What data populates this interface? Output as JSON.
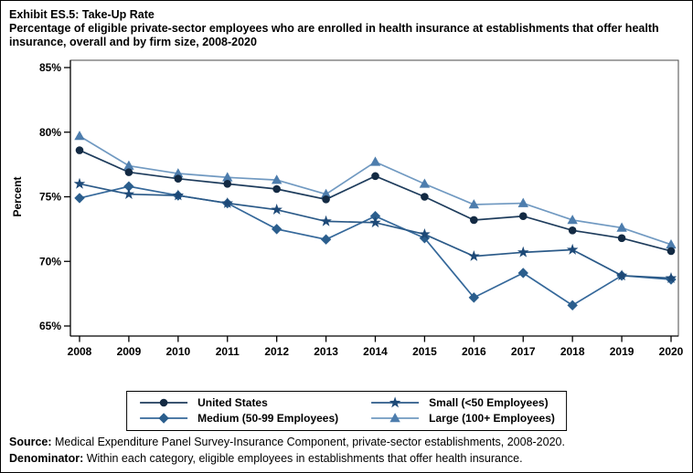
{
  "title": {
    "line1": "Exhibit ES.5: Take-Up Rate",
    "line2": "Percentage of eligible private-sector employees who are enrolled in health insurance at establishments that offer health insurance, overall and by firm size, 2008-2020"
  },
  "chart_data": {
    "type": "line",
    "x": [
      2008,
      2009,
      2010,
      2011,
      2012,
      2013,
      2014,
      2015,
      2016,
      2017,
      2018,
      2019,
      2020
    ],
    "ylabel": "Percent",
    "ylim": [
      65,
      85
    ],
    "yticks": [
      85,
      80,
      75,
      70,
      65
    ],
    "ytick_labels": [
      "85%",
      "80%",
      "75%",
      "70%",
      "65%"
    ],
    "grid": false,
    "legend_position": "bottom-center-box",
    "series": [
      {
        "name": "United States",
        "marker": "circle",
        "line_color": "#1e3c5c",
        "marker_color": "#132a43",
        "values": [
          78.6,
          76.9,
          76.4,
          76.0,
          75.6,
          74.8,
          76.6,
          75.0,
          73.2,
          73.5,
          72.4,
          71.8,
          70.8
        ]
      },
      {
        "name": "Small (<50 Employees)",
        "marker": "star",
        "line_color": "#2b5a88",
        "marker_color": "#1d4977",
        "values": [
          76.0,
          75.2,
          75.1,
          74.5,
          74.0,
          73.1,
          73.0,
          72.1,
          70.4,
          70.7,
          70.9,
          68.9,
          68.7
        ]
      },
      {
        "name": "Medium (50-99 Employees)",
        "marker": "diamond",
        "line_color": "#35689a",
        "marker_color": "#2b5e8d",
        "values": [
          74.9,
          75.8,
          75.1,
          74.5,
          72.5,
          71.7,
          73.5,
          71.8,
          67.2,
          69.1,
          66.6,
          68.9,
          68.6
        ]
      },
      {
        "name": "Large (100+ Employees)",
        "marker": "triangle",
        "line_color": "#7099c1",
        "marker_color": "#4d7dad",
        "values": [
          79.7,
          77.4,
          76.8,
          76.5,
          76.3,
          75.2,
          77.7,
          76.0,
          74.4,
          74.5,
          73.2,
          72.6,
          71.3
        ]
      }
    ]
  },
  "footer": {
    "source_label": "Source:",
    "source_text": " Medical Expenditure Panel Survey-Insurance Component, private-sector establishments, 2008-2020.",
    "denominator_label": "Denominator:",
    "denominator_text": " Within each category, eligible employees in establishments that offer health insurance."
  }
}
